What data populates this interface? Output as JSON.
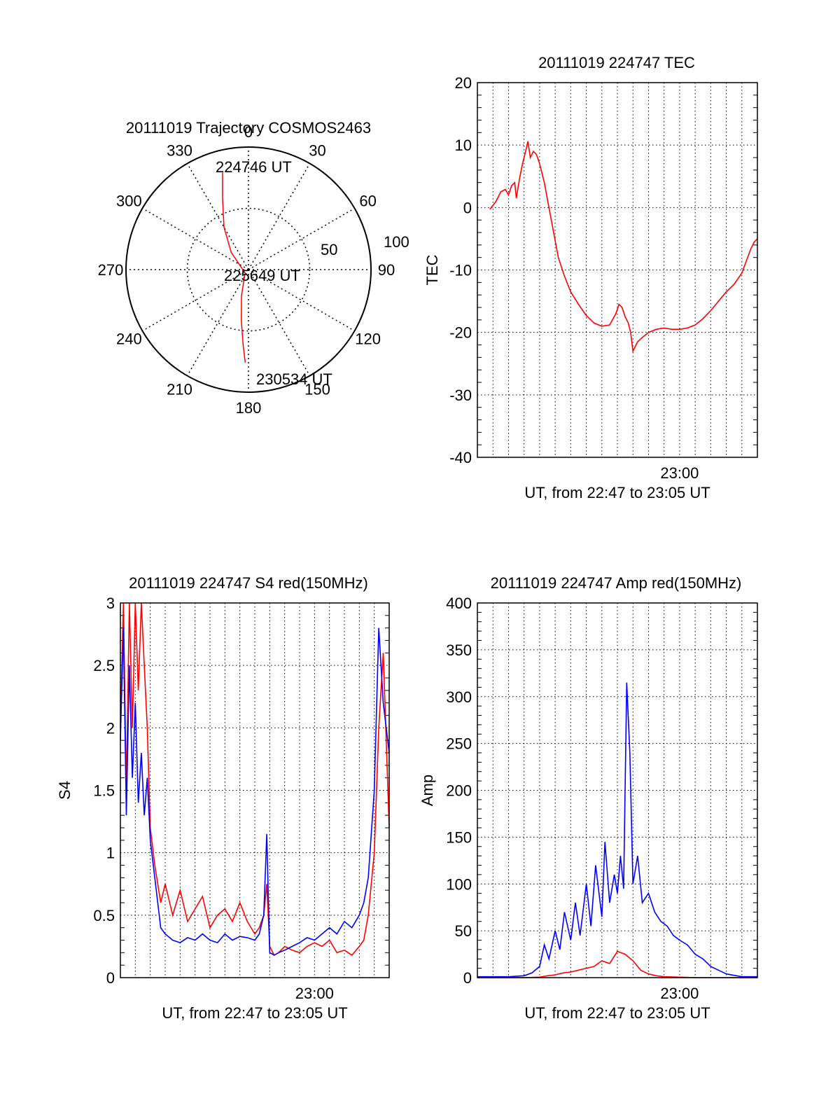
{
  "chart_data": [
    {
      "type": "polar",
      "title": "20111019 Trajectory COSMOS2463",
      "azimuth_labels": [
        "0",
        "30",
        "60",
        "90",
        "120",
        "150",
        "180",
        "210",
        "240",
        "270",
        "300",
        "330"
      ],
      "radial_labels": [
        "50",
        "100"
      ],
      "trajectory": {
        "color": "#ff0000",
        "points": [
          [
            345,
            82
          ],
          [
            340,
            62
          ],
          [
            330,
            40
          ],
          [
            315,
            20
          ],
          [
            225,
            4
          ],
          [
            195,
            22
          ],
          [
            188,
            42
          ],
          [
            184,
            62
          ],
          [
            182,
            76
          ]
        ],
        "start_label": "224746 UT",
        "mid_label": "225649 UT",
        "end_label": "230534 UT"
      }
    },
    {
      "type": "line",
      "title": "20111019 224747 TEC",
      "ylabel": "TEC",
      "xlabel": "UT, from 22:47 to 23:05 UT",
      "xtick_label": "23:00",
      "xtick_value": 13,
      "xlim": [
        0,
        18
      ],
      "ylim": [
        -40,
        20
      ],
      "yticks": [
        -40,
        -30,
        -20,
        -10,
        0,
        10,
        20
      ],
      "yticks_labels": [
        "-40",
        "-30",
        "-20",
        "-10",
        "0",
        "10",
        "20"
      ],
      "series": [
        {
          "color": "#ff0000",
          "x": [
            0.8,
            1.2,
            1.5,
            1.8,
            2.0,
            2.2,
            2.4,
            2.5,
            2.7,
            2.9,
            3.1,
            3.25,
            3.4,
            3.6,
            3.8,
            4.0,
            4.3,
            4.6,
            4.9,
            5.2,
            5.6,
            6.0,
            6.5,
            7.0,
            7.5,
            8.0,
            8.5,
            8.9,
            9.1,
            9.3,
            9.5,
            9.7,
            9.85,
            10.0,
            10.3,
            10.6,
            11.0,
            11.5,
            12.0,
            12.5,
            13.0,
            13.5,
            14.0,
            14.5,
            15.0,
            15.5,
            16.0,
            16.5,
            17.0,
            17.3,
            17.6,
            17.8,
            18.0
          ],
          "y": [
            -0.3,
            1.0,
            2.5,
            2.9,
            2.0,
            3.5,
            4.0,
            1.5,
            4.5,
            7.0,
            9.0,
            10.6,
            8.0,
            9.0,
            8.5,
            7.0,
            4.0,
            0.0,
            -4.0,
            -8.0,
            -11.0,
            -13.5,
            -15.5,
            -17.3,
            -18.5,
            -19.0,
            -18.8,
            -17.0,
            -15.5,
            -16.0,
            -17.5,
            -18.5,
            -20.0,
            -23.0,
            -21.5,
            -20.8,
            -20.0,
            -19.5,
            -19.3,
            -19.5,
            -19.5,
            -19.3,
            -18.8,
            -17.8,
            -16.5,
            -15.0,
            -13.5,
            -12.3,
            -10.5,
            -8.5,
            -6.5,
            -5.5,
            -5.0
          ]
        }
      ]
    },
    {
      "type": "line",
      "title": "20111019 224747 S4 red(150MHz)",
      "ylabel": "S4",
      "xlabel": "UT, from 22:47 to 23:05 UT",
      "xtick_label": "23:00",
      "xtick_value": 13,
      "xlim": [
        0,
        18
      ],
      "ylim": [
        0,
        3
      ],
      "yticks": [
        0,
        0.5,
        1,
        1.5,
        2,
        2.5,
        3
      ],
      "yticks_labels": [
        "0",
        "0.5",
        "1",
        "1.5",
        "2",
        "2.5",
        "3"
      ],
      "series": [
        {
          "color": "#ff0000",
          "x": [
            0.0,
            0.2,
            0.4,
            0.6,
            0.8,
            1.0,
            1.2,
            1.4,
            1.6,
            1.8,
            2.0,
            2.3,
            2.7,
            3.0,
            3.5,
            4.0,
            4.5,
            5.0,
            5.5,
            6.0,
            6.5,
            7.0,
            7.5,
            8.0,
            8.5,
            9.0,
            9.3,
            9.6,
            9.8,
            10.0,
            10.3,
            10.6,
            11.0,
            11.5,
            12.0,
            12.5,
            13.0,
            13.5,
            14.0,
            14.5,
            15.0,
            15.5,
            16.0,
            16.3,
            16.6,
            17.0,
            17.3,
            17.6,
            18.0
          ],
          "y": [
            2.0,
            3.0,
            1.5,
            3.0,
            2.0,
            3.0,
            2.3,
            3.0,
            2.5,
            2.0,
            1.2,
            0.9,
            0.6,
            0.75,
            0.5,
            0.7,
            0.45,
            0.55,
            0.65,
            0.4,
            0.5,
            0.55,
            0.45,
            0.6,
            0.45,
            0.35,
            0.4,
            0.5,
            0.75,
            0.25,
            0.18,
            0.2,
            0.25,
            0.22,
            0.2,
            0.25,
            0.28,
            0.25,
            0.3,
            0.2,
            0.22,
            0.18,
            0.25,
            0.3,
            0.5,
            1.0,
            2.0,
            2.6,
            1.2
          ]
        },
        {
          "color": "#0000ff",
          "x": [
            0.0,
            0.2,
            0.4,
            0.6,
            0.8,
            1.0,
            1.2,
            1.4,
            1.6,
            1.8,
            2.0,
            2.3,
            2.7,
            3.0,
            3.5,
            4.0,
            4.5,
            5.0,
            5.5,
            6.0,
            6.5,
            7.0,
            7.5,
            8.0,
            8.5,
            9.0,
            9.3,
            9.6,
            9.8,
            10.0,
            10.3,
            10.6,
            11.0,
            11.5,
            12.0,
            12.5,
            13.0,
            13.5,
            14.0,
            14.5,
            15.0,
            15.5,
            16.0,
            16.3,
            16.6,
            17.0,
            17.3,
            17.6,
            18.0
          ],
          "y": [
            1.9,
            2.8,
            1.3,
            2.5,
            1.6,
            2.2,
            1.4,
            1.8,
            1.3,
            1.6,
            1.1,
            0.8,
            0.4,
            0.35,
            0.3,
            0.28,
            0.32,
            0.3,
            0.35,
            0.3,
            0.28,
            0.35,
            0.3,
            0.33,
            0.32,
            0.3,
            0.35,
            0.5,
            1.15,
            0.2,
            0.18,
            0.2,
            0.22,
            0.25,
            0.28,
            0.32,
            0.3,
            0.35,
            0.4,
            0.35,
            0.45,
            0.4,
            0.5,
            0.6,
            0.8,
            1.5,
            2.8,
            2.2,
            1.8
          ]
        }
      ]
    },
    {
      "type": "line",
      "title": "20111019 224747 Amp red(150MHz)",
      "ylabel": "Amp",
      "xlabel": "UT, from 22:47 to 23:05 UT",
      "xtick_label": "23:00",
      "xtick_value": 13,
      "xlim": [
        0,
        18
      ],
      "ylim": [
        0,
        400
      ],
      "yticks": [
        0,
        50,
        100,
        150,
        200,
        250,
        300,
        350,
        400
      ],
      "yticks_labels": [
        "0",
        "50",
        "100",
        "150",
        "200",
        "250",
        "300",
        "350",
        "400"
      ],
      "series": [
        {
          "color": "#ff0000",
          "x": [
            0.0,
            3.0,
            4.0,
            4.5,
            5.0,
            5.5,
            6.0,
            6.5,
            7.0,
            7.5,
            8.0,
            8.5,
            9.0,
            9.5,
            10.0,
            10.5,
            11.0,
            11.5,
            12.0,
            13.0,
            14.0,
            15.0,
            18.0
          ],
          "y": [
            0,
            0,
            0.5,
            2,
            3,
            5,
            6,
            8,
            10,
            12,
            18,
            15,
            28,
            25,
            18,
            8,
            4,
            2,
            1,
            0.5,
            0,
            0,
            0
          ]
        },
        {
          "color": "#0000ff",
          "x": [
            0.0,
            2.0,
            3.0,
            3.5,
            4.0,
            4.3,
            4.6,
            5.0,
            5.3,
            5.6,
            6.0,
            6.3,
            6.6,
            7.0,
            7.3,
            7.6,
            8.0,
            8.2,
            8.5,
            8.8,
            9.0,
            9.2,
            9.4,
            9.6,
            9.8,
            10.0,
            10.3,
            10.6,
            11.0,
            11.4,
            11.8,
            12.2,
            12.6,
            13.0,
            13.5,
            14.0,
            14.5,
            15.0,
            15.5,
            16.0,
            17.0,
            18.0
          ],
          "y": [
            1,
            1,
            2,
            5,
            12,
            35,
            20,
            50,
            30,
            70,
            40,
            80,
            45,
            100,
            55,
            120,
            65,
            145,
            80,
            110,
            90,
            130,
            95,
            315,
            240,
            100,
            130,
            80,
            90,
            70,
            60,
            55,
            45,
            40,
            35,
            25,
            20,
            12,
            8,
            4,
            1,
            1
          ]
        }
      ]
    }
  ]
}
